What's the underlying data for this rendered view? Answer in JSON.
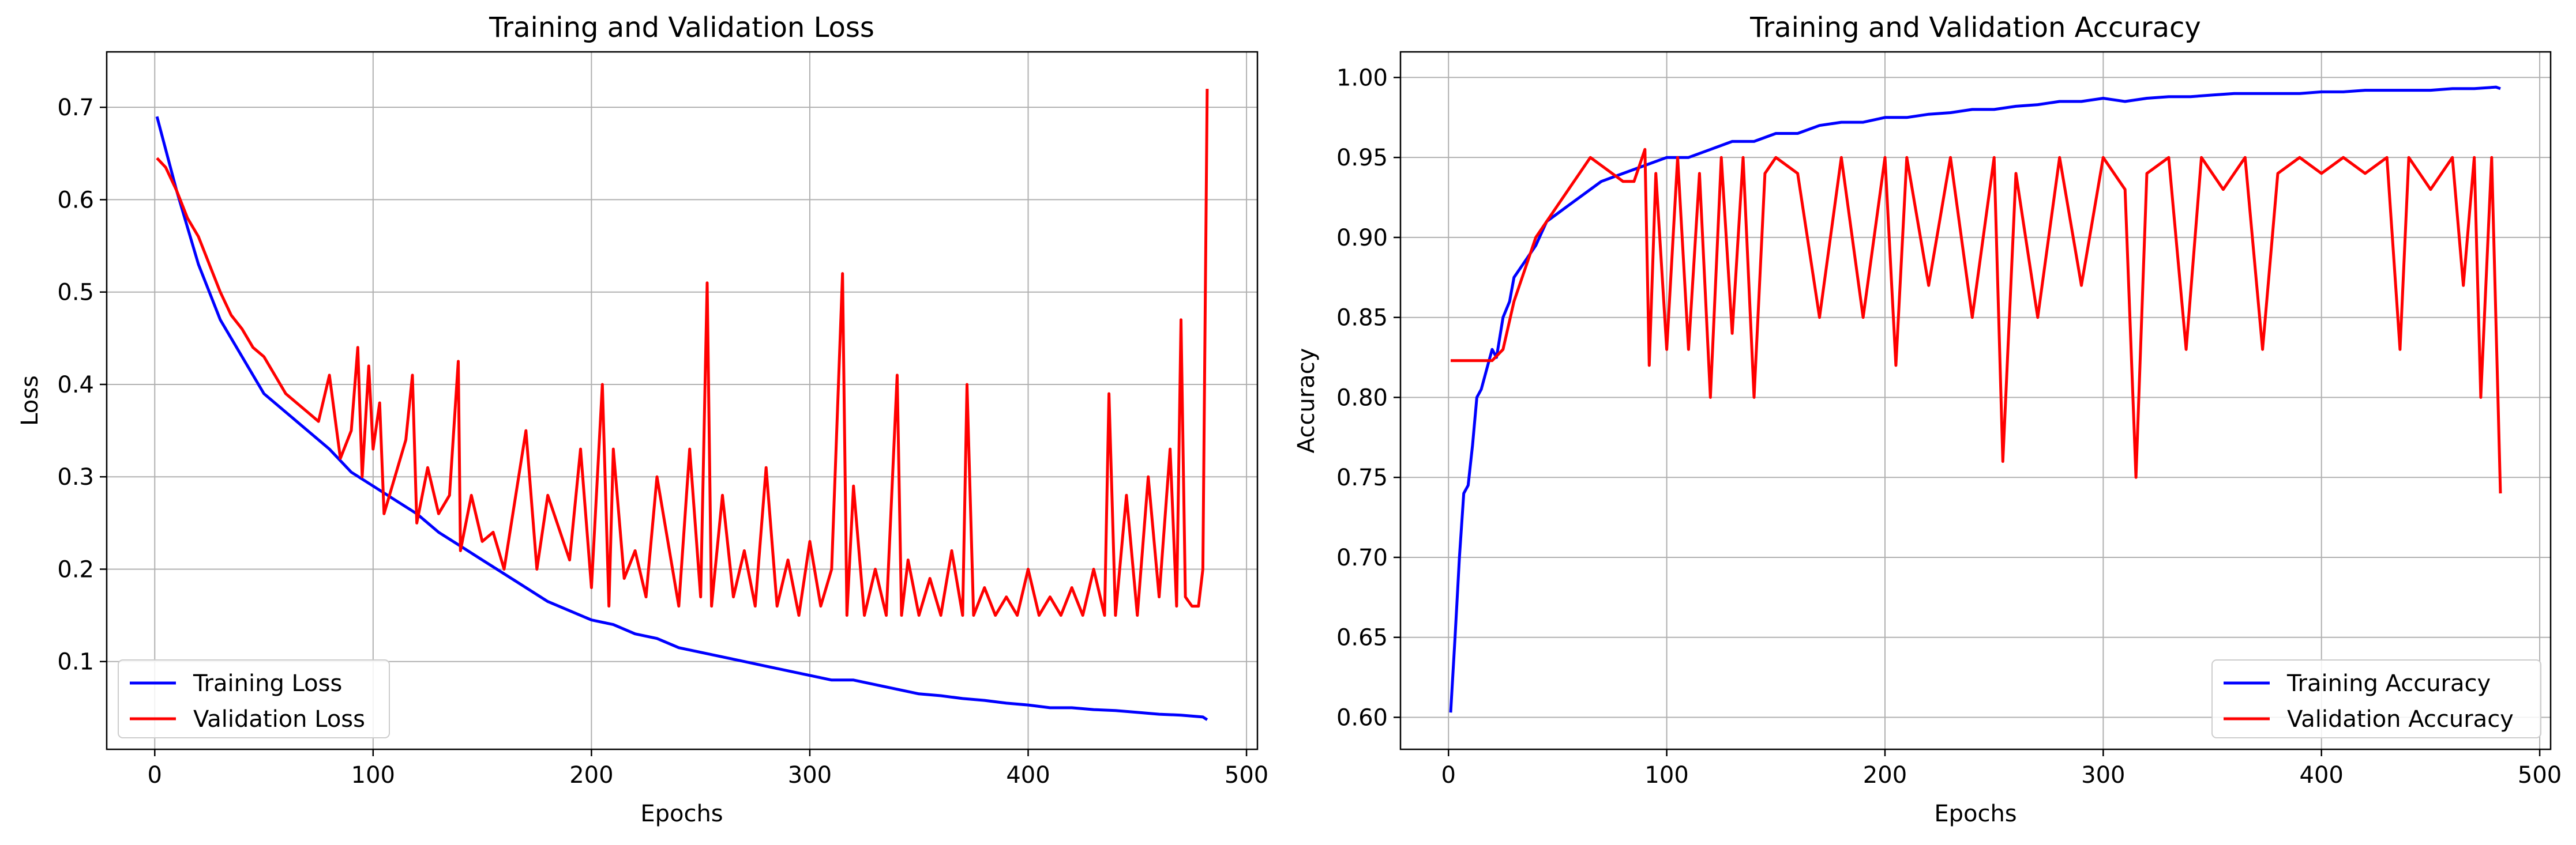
{
  "chart_data": [
    {
      "type": "line",
      "title": "Training and Validation Loss",
      "xlabel": "Epochs",
      "ylabel": "Loss",
      "xlim": [
        -22,
        505
      ],
      "ylim": [
        0.005,
        0.76
      ],
      "xticks": [
        0,
        100,
        200,
        300,
        400,
        500
      ],
      "yticks": [
        0.1,
        0.2,
        0.3,
        0.4,
        0.5,
        0.6,
        0.7
      ],
      "grid": true,
      "legend_position": "lower-left",
      "series": [
        {
          "name": "Training Loss",
          "color": "#0000ff",
          "x": [
            1,
            10,
            20,
            30,
            40,
            50,
            60,
            70,
            80,
            90,
            100,
            110,
            120,
            130,
            140,
            150,
            160,
            170,
            180,
            190,
            200,
            210,
            220,
            230,
            240,
            250,
            260,
            270,
            280,
            290,
            300,
            310,
            320,
            330,
            340,
            350,
            360,
            370,
            380,
            390,
            400,
            410,
            420,
            430,
            440,
            450,
            460,
            470,
            480,
            482
          ],
          "y": [
            0.69,
            0.61,
            0.53,
            0.47,
            0.43,
            0.39,
            0.37,
            0.35,
            0.33,
            0.305,
            0.29,
            0.275,
            0.26,
            0.24,
            0.225,
            0.21,
            0.195,
            0.18,
            0.165,
            0.155,
            0.145,
            0.14,
            0.13,
            0.125,
            0.115,
            0.11,
            0.105,
            0.1,
            0.095,
            0.09,
            0.085,
            0.08,
            0.08,
            0.075,
            0.07,
            0.065,
            0.063,
            0.06,
            0.058,
            0.055,
            0.053,
            0.05,
            0.05,
            0.048,
            0.047,
            0.045,
            0.043,
            0.042,
            0.04,
            0.037
          ]
        },
        {
          "name": "Validation Loss",
          "color": "#ff0000",
          "x": [
            1,
            5,
            10,
            15,
            20,
            25,
            30,
            35,
            40,
            45,
            50,
            55,
            60,
            65,
            70,
            75,
            80,
            85,
            90,
            93,
            95,
            98,
            100,
            103,
            105,
            110,
            115,
            118,
            120,
            125,
            130,
            135,
            139,
            140,
            145,
            150,
            155,
            160,
            170,
            175,
            180,
            190,
            195,
            200,
            205,
            208,
            210,
            215,
            220,
            225,
            230,
            240,
            245,
            250,
            253,
            255,
            260,
            265,
            270,
            275,
            280,
            285,
            290,
            295,
            300,
            305,
            310,
            315,
            317,
            320,
            325,
            330,
            335,
            340,
            342,
            345,
            350,
            355,
            360,
            365,
            370,
            372,
            375,
            380,
            385,
            390,
            395,
            400,
            405,
            410,
            415,
            420,
            425,
            430,
            435,
            437,
            440,
            445,
            450,
            455,
            460,
            465,
            468,
            470,
            472,
            475,
            478,
            480,
            482
          ],
          "y": [
            0.645,
            0.635,
            0.61,
            0.58,
            0.56,
            0.53,
            0.5,
            0.475,
            0.46,
            0.44,
            0.43,
            0.41,
            0.39,
            0.38,
            0.37,
            0.36,
            0.41,
            0.32,
            0.35,
            0.44,
            0.3,
            0.42,
            0.33,
            0.38,
            0.26,
            0.3,
            0.34,
            0.41,
            0.25,
            0.31,
            0.26,
            0.28,
            0.425,
            0.22,
            0.28,
            0.23,
            0.24,
            0.2,
            0.35,
            0.2,
            0.28,
            0.21,
            0.33,
            0.18,
            0.4,
            0.16,
            0.33,
            0.19,
            0.22,
            0.17,
            0.3,
            0.16,
            0.33,
            0.17,
            0.51,
            0.16,
            0.28,
            0.17,
            0.22,
            0.16,
            0.31,
            0.16,
            0.21,
            0.15,
            0.23,
            0.16,
            0.2,
            0.52,
            0.15,
            0.29,
            0.15,
            0.2,
            0.15,
            0.41,
            0.15,
            0.21,
            0.15,
            0.19,
            0.15,
            0.22,
            0.15,
            0.4,
            0.15,
            0.18,
            0.15,
            0.17,
            0.15,
            0.2,
            0.15,
            0.17,
            0.15,
            0.18,
            0.15,
            0.2,
            0.15,
            0.39,
            0.15,
            0.28,
            0.15,
            0.3,
            0.17,
            0.33,
            0.16,
            0.47,
            0.17,
            0.16,
            0.16,
            0.2,
            0.72
          ]
        }
      ]
    },
    {
      "type": "line",
      "title": "Training and Validation Accuracy",
      "xlabel": "Epochs",
      "ylabel": "Accuracy",
      "xlim": [
        -22,
        505
      ],
      "ylim": [
        0.58,
        1.016
      ],
      "xticks": [
        0,
        100,
        200,
        300,
        400,
        500
      ],
      "yticks": [
        0.6,
        0.65,
        0.7,
        0.75,
        0.8,
        0.85,
        0.9,
        0.95,
        1.0
      ],
      "grid": true,
      "legend_position": "lower-right",
      "series": [
        {
          "name": "Training Accuracy",
          "color": "#0000ff",
          "x": [
            1,
            3,
            5,
            7,
            9,
            11,
            13,
            15,
            18,
            20,
            22,
            25,
            28,
            30,
            35,
            40,
            45,
            50,
            55,
            60,
            70,
            80,
            90,
            100,
            110,
            120,
            130,
            140,
            150,
            160,
            170,
            180,
            190,
            200,
            210,
            220,
            230,
            240,
            250,
            260,
            270,
            280,
            290,
            300,
            310,
            320,
            330,
            340,
            350,
            360,
            370,
            380,
            390,
            400,
            410,
            420,
            430,
            440,
            450,
            460,
            470,
            480,
            482
          ],
          "y": [
            0.603,
            0.65,
            0.7,
            0.74,
            0.745,
            0.77,
            0.8,
            0.805,
            0.82,
            0.83,
            0.825,
            0.85,
            0.86,
            0.875,
            0.885,
            0.895,
            0.91,
            0.915,
            0.92,
            0.925,
            0.935,
            0.94,
            0.945,
            0.95,
            0.95,
            0.955,
            0.96,
            0.96,
            0.965,
            0.965,
            0.97,
            0.972,
            0.972,
            0.975,
            0.975,
            0.977,
            0.978,
            0.98,
            0.98,
            0.982,
            0.983,
            0.985,
            0.985,
            0.987,
            0.985,
            0.987,
            0.988,
            0.988,
            0.989,
            0.99,
            0.99,
            0.99,
            0.99,
            0.991,
            0.991,
            0.992,
            0.992,
            0.992,
            0.992,
            0.993,
            0.993,
            0.994,
            0.993
          ]
        },
        {
          "name": "Validation Accuracy",
          "color": "#ff0000",
          "x": [
            1,
            10,
            20,
            25,
            30,
            35,
            40,
            45,
            50,
            55,
            60,
            65,
            70,
            75,
            80,
            85,
            90,
            92,
            95,
            100,
            105,
            110,
            115,
            120,
            125,
            130,
            135,
            140,
            145,
            150,
            160,
            170,
            180,
            190,
            200,
            205,
            210,
            220,
            230,
            240,
            250,
            254,
            260,
            270,
            280,
            290,
            300,
            310,
            315,
            320,
            330,
            338,
            345,
            355,
            365,
            373,
            380,
            390,
            400,
            410,
            420,
            430,
            436,
            440,
            450,
            460,
            465,
            470,
            473,
            478,
            482
          ],
          "y": [
            0.823,
            0.823,
            0.823,
            0.83,
            0.86,
            0.88,
            0.9,
            0.91,
            0.92,
            0.93,
            0.94,
            0.95,
            0.945,
            0.94,
            0.935,
            0.935,
            0.955,
            0.82,
            0.94,
            0.83,
            0.95,
            0.83,
            0.94,
            0.8,
            0.95,
            0.84,
            0.95,
            0.8,
            0.94,
            0.95,
            0.94,
            0.85,
            0.95,
            0.85,
            0.95,
            0.82,
            0.95,
            0.87,
            0.95,
            0.85,
            0.95,
            0.76,
            0.94,
            0.85,
            0.95,
            0.87,
            0.95,
            0.93,
            0.75,
            0.94,
            0.95,
            0.83,
            0.95,
            0.93,
            0.95,
            0.83,
            0.94,
            0.95,
            0.94,
            0.95,
            0.94,
            0.95,
            0.83,
            0.95,
            0.93,
            0.95,
            0.87,
            0.95,
            0.8,
            0.95,
            0.74
          ]
        }
      ]
    }
  ]
}
